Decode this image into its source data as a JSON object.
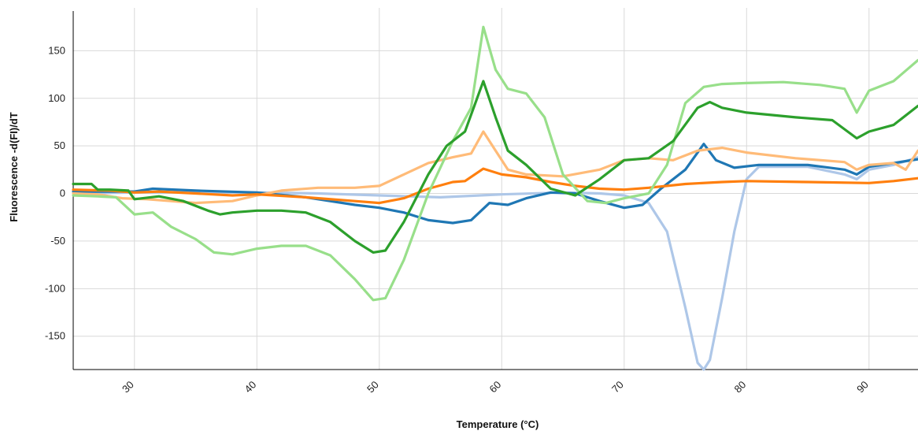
{
  "chart_data": {
    "type": "line",
    "title": "",
    "xlabel": "Temperature (°C)",
    "ylabel": "Fluorescence -d(FI)/dT",
    "xlim": [
      25,
      94
    ],
    "ylim": [
      -185,
      195
    ],
    "x_ticks": [
      30,
      40,
      50,
      60,
      70,
      80,
      90
    ],
    "y_ticks": [
      -150,
      -100,
      -50,
      0,
      50,
      100,
      150
    ],
    "grid": true,
    "legend": "none",
    "series": [
      {
        "color": "#aec7e8",
        "points": [
          [
            25,
            0
          ],
          [
            30,
            1
          ],
          [
            35,
            1
          ],
          [
            40,
            1
          ],
          [
            45,
            0
          ],
          [
            50,
            -2
          ],
          [
            55,
            -4
          ],
          [
            60,
            -1
          ],
          [
            65,
            1
          ],
          [
            68,
            0
          ],
          [
            70,
            -2
          ],
          [
            72,
            -10
          ],
          [
            73.5,
            -40
          ],
          [
            75,
            -120
          ],
          [
            76,
            -178
          ],
          [
            76.5,
            -185
          ],
          [
            77,
            -175
          ],
          [
            78,
            -110
          ],
          [
            79,
            -40
          ],
          [
            80,
            15
          ],
          [
            81,
            28
          ],
          [
            85,
            28
          ],
          [
            88,
            20
          ],
          [
            89,
            15
          ],
          [
            90,
            25
          ],
          [
            92,
            30
          ],
          [
            94,
            38
          ]
        ]
      },
      {
        "color": "#1f77b4",
        "points": [
          [
            25,
            2
          ],
          [
            28,
            2
          ],
          [
            30,
            2
          ],
          [
            31.5,
            5
          ],
          [
            35,
            3
          ],
          [
            40,
            1
          ],
          [
            44,
            -4
          ],
          [
            48,
            -12
          ],
          [
            50,
            -15
          ],
          [
            52,
            -20
          ],
          [
            54,
            -28
          ],
          [
            56,
            -31
          ],
          [
            57.5,
            -28
          ],
          [
            59,
            -10
          ],
          [
            60.5,
            -12
          ],
          [
            62,
            -5
          ],
          [
            64,
            1
          ],
          [
            66,
            0
          ],
          [
            68,
            -8
          ],
          [
            70,
            -15
          ],
          [
            71.5,
            -12
          ],
          [
            73,
            5
          ],
          [
            75,
            25
          ],
          [
            76.5,
            52
          ],
          [
            77.5,
            35
          ],
          [
            79,
            27
          ],
          [
            81,
            30
          ],
          [
            85,
            30
          ],
          [
            88,
            25
          ],
          [
            89,
            20
          ],
          [
            90,
            28
          ],
          [
            92,
            32
          ],
          [
            94,
            36
          ]
        ]
      },
      {
        "color": "#ffbb78",
        "points": [
          [
            25,
            0
          ],
          [
            27,
            -1
          ],
          [
            29,
            -5
          ],
          [
            31,
            -6
          ],
          [
            33,
            -8
          ],
          [
            35,
            -10
          ],
          [
            38,
            -8
          ],
          [
            40,
            -2
          ],
          [
            42,
            3
          ],
          [
            45,
            6
          ],
          [
            48,
            6
          ],
          [
            50,
            8
          ],
          [
            52,
            20
          ],
          [
            54,
            32
          ],
          [
            56,
            38
          ],
          [
            57.5,
            42
          ],
          [
            58.5,
            65
          ],
          [
            59.5,
            45
          ],
          [
            60.5,
            25
          ],
          [
            62,
            20
          ],
          [
            65,
            18
          ],
          [
            68,
            25
          ],
          [
            70,
            35
          ],
          [
            72,
            37
          ],
          [
            74,
            35
          ],
          [
            76,
            45
          ],
          [
            78,
            48
          ],
          [
            80,
            43
          ],
          [
            84,
            37
          ],
          [
            88,
            33
          ],
          [
            89,
            25
          ],
          [
            90,
            30
          ],
          [
            92,
            32
          ],
          [
            93,
            25
          ],
          [
            94,
            45
          ]
        ]
      },
      {
        "color": "#ff7f0e",
        "points": [
          [
            25,
            4
          ],
          [
            28,
            3
          ],
          [
            30,
            1
          ],
          [
            32,
            2
          ],
          [
            35,
            0
          ],
          [
            38,
            -2
          ],
          [
            40,
            -1
          ],
          [
            44,
            -4
          ],
          [
            48,
            -8
          ],
          [
            50,
            -10
          ],
          [
            52,
            -5
          ],
          [
            54,
            5
          ],
          [
            56,
            12
          ],
          [
            57,
            13
          ],
          [
            58.5,
            26
          ],
          [
            60,
            20
          ],
          [
            62,
            17
          ],
          [
            64,
            12
          ],
          [
            66,
            8
          ],
          [
            68,
            5
          ],
          [
            70,
            4
          ],
          [
            72,
            6
          ],
          [
            75,
            10
          ],
          [
            78,
            12
          ],
          [
            80,
            13
          ],
          [
            85,
            12
          ],
          [
            90,
            11
          ],
          [
            92,
            13
          ],
          [
            94,
            16
          ]
        ]
      },
      {
        "color": "#98df8a",
        "points": [
          [
            25,
            -2
          ],
          [
            27,
            -3
          ],
          [
            28.5,
            -4
          ],
          [
            30,
            -22
          ],
          [
            31.5,
            -20
          ],
          [
            33,
            -35
          ],
          [
            35,
            -48
          ],
          [
            36.5,
            -62
          ],
          [
            38,
            -64
          ],
          [
            40,
            -58
          ],
          [
            42,
            -55
          ],
          [
            44,
            -55
          ],
          [
            46,
            -65
          ],
          [
            48,
            -90
          ],
          [
            49.5,
            -112
          ],
          [
            50.5,
            -110
          ],
          [
            52,
            -70
          ],
          [
            54,
            0
          ],
          [
            56,
            55
          ],
          [
            57.5,
            90
          ],
          [
            58.5,
            175
          ],
          [
            59.5,
            130
          ],
          [
            60.5,
            110
          ],
          [
            62,
            105
          ],
          [
            63.5,
            80
          ],
          [
            65,
            20
          ],
          [
            67,
            -8
          ],
          [
            68.5,
            -10
          ],
          [
            70,
            -5
          ],
          [
            72,
            0
          ],
          [
            73.5,
            30
          ],
          [
            75,
            95
          ],
          [
            76.5,
            112
          ],
          [
            78,
            115
          ],
          [
            80,
            116
          ],
          [
            83,
            117
          ],
          [
            86,
            114
          ],
          [
            88,
            110
          ],
          [
            89,
            85
          ],
          [
            90,
            108
          ],
          [
            92,
            118
          ],
          [
            94,
            140
          ]
        ]
      },
      {
        "color": "#2ca02c",
        "points": [
          [
            25,
            10
          ],
          [
            26.5,
            10
          ],
          [
            27,
            4
          ],
          [
            28,
            4
          ],
          [
            29.5,
            3
          ],
          [
            30,
            -6
          ],
          [
            32,
            -3
          ],
          [
            34,
            -8
          ],
          [
            36,
            -18
          ],
          [
            37,
            -22
          ],
          [
            38,
            -20
          ],
          [
            40,
            -18
          ],
          [
            42,
            -18
          ],
          [
            44,
            -20
          ],
          [
            46,
            -30
          ],
          [
            48,
            -50
          ],
          [
            49.5,
            -62
          ],
          [
            50.5,
            -60
          ],
          [
            52,
            -30
          ],
          [
            54,
            20
          ],
          [
            55.5,
            50
          ],
          [
            57,
            65
          ],
          [
            58.5,
            118
          ],
          [
            59.5,
            80
          ],
          [
            60.5,
            45
          ],
          [
            62,
            30
          ],
          [
            64,
            5
          ],
          [
            66,
            -2
          ],
          [
            68,
            15
          ],
          [
            70,
            35
          ],
          [
            72,
            37
          ],
          [
            74,
            55
          ],
          [
            76,
            90
          ],
          [
            77,
            96
          ],
          [
            78,
            90
          ],
          [
            80,
            85
          ],
          [
            84,
            80
          ],
          [
            87,
            77
          ],
          [
            89,
            58
          ],
          [
            90,
            65
          ],
          [
            92,
            72
          ],
          [
            94,
            92
          ]
        ]
      }
    ]
  }
}
